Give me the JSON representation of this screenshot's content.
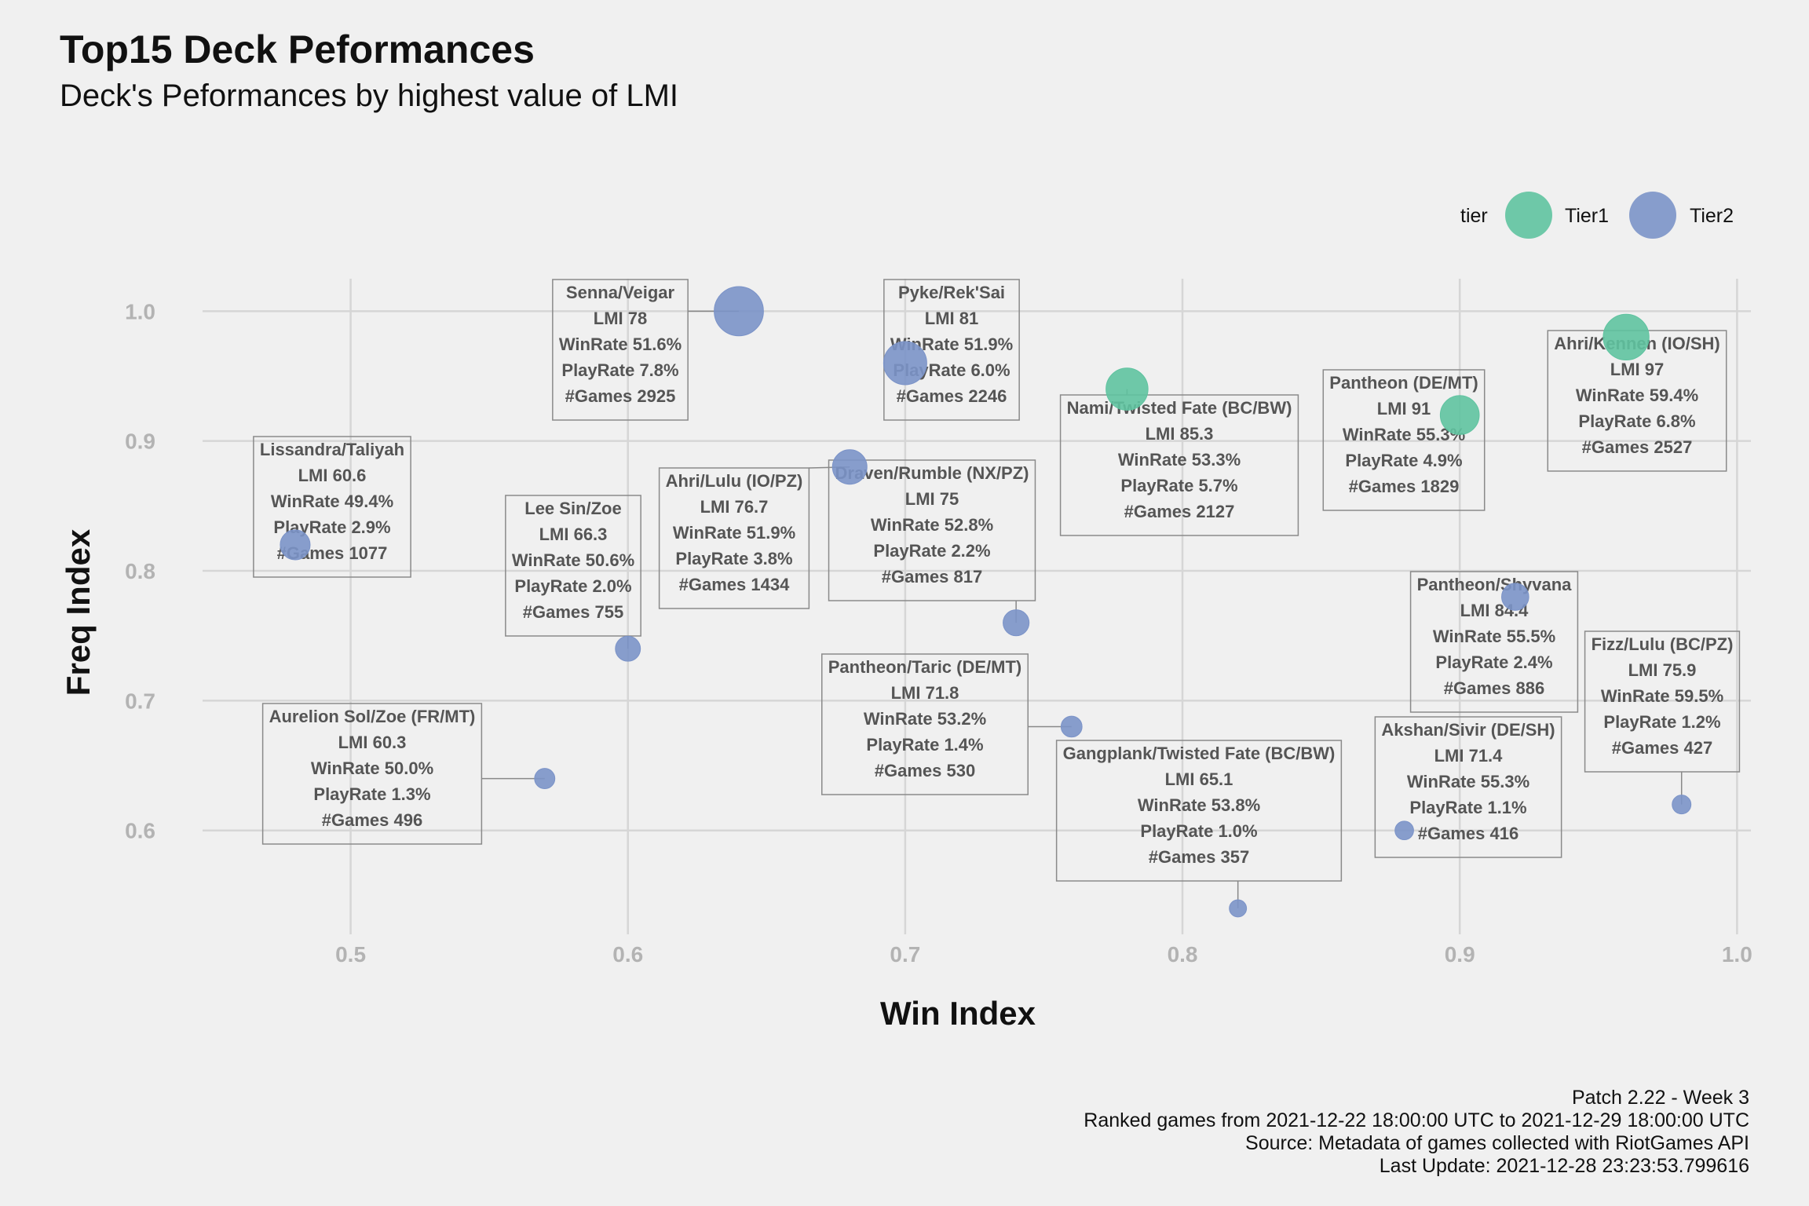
{
  "title": "Top15 Deck Peformances",
  "subtitle": "Deck's Peformances by highest value of LMI",
  "caption": [
    "Patch 2.22 - Week 3",
    "Ranked games from 2021-12-22 18:00:00 UTC to 2021-12-29 18:00:00 UTC",
    "Source: Metadata of games collected with RiotGames API",
    "Last Update: 2021-12-28 23:23:53.799616"
  ],
  "colors": {
    "Tier1": "#5fc3a0",
    "Tier2": "#7b93c8",
    "background": "#f0f0f0",
    "grid": "#d6d6d6"
  },
  "chart_data": {
    "type": "scatter",
    "xlabel": "Win Index",
    "ylabel": "Freq Index",
    "xlim": [
      0.45,
      1.005
    ],
    "ylim": [
      0.52,
      1.025
    ],
    "x_ticks": [
      "0.5",
      "0.6",
      "0.7",
      "0.8",
      "0.9",
      "1.0"
    ],
    "y_ticks": [
      "0.6",
      "0.7",
      "0.8",
      "0.9",
      "1.0"
    ],
    "grid": true,
    "size_variable": "#Games",
    "legend": {
      "title": "tier",
      "position": "top-right",
      "entries": [
        "Tier1",
        "Tier2"
      ]
    },
    "points": [
      {
        "deck": "Senna/Veigar",
        "tier": "Tier2",
        "x": 0.64,
        "y": 1.0,
        "lines": [
          "Senna/Veigar",
          "LMI 78",
          "WinRate 51.6%",
          "PlayRate 7.8%",
          "#Games 2925"
        ]
      },
      {
        "deck": "Pyke/Rek'Sai",
        "tier": "Tier2",
        "x": 0.7,
        "y": 0.96,
        "lines": [
          "Pyke/Rek'Sai",
          "LMI 81",
          "WinRate 51.9%",
          "PlayRate 6.0%",
          "#Games 2246"
        ]
      },
      {
        "deck": "Nami/Twisted Fate (BC/BW)",
        "tier": "Tier1",
        "x": 0.78,
        "y": 0.94,
        "lines": [
          "Nami/Twisted Fate (BC/BW)",
          "LMI 85.3",
          "WinRate 53.3%",
          "PlayRate 5.7%",
          "#Games 2127"
        ]
      },
      {
        "deck": "Pantheon (DE/MT)",
        "tier": "Tier1",
        "x": 0.9,
        "y": 0.92,
        "lines": [
          "Pantheon (DE/MT)",
          "LMI 91",
          "WinRate 55.3%",
          "PlayRate 4.9%",
          "#Games 1829"
        ]
      },
      {
        "deck": "Ahri/Kennen (IO/SH)",
        "tier": "Tier1",
        "x": 0.96,
        "y": 0.98,
        "lines": [
          "Ahri/Kennen (IO/SH)",
          "LMI 97",
          "WinRate 59.4%",
          "PlayRate 6.8%",
          "#Games 2527"
        ]
      },
      {
        "deck": "Lissandra/Taliyah",
        "tier": "Tier2",
        "x": 0.48,
        "y": 0.82,
        "lines": [
          "Lissandra/Taliyah",
          "LMI 60.6",
          "WinRate 49.4%",
          "PlayRate 2.9%",
          "#Games 1077"
        ]
      },
      {
        "deck": "Lee Sin/Zoe",
        "tier": "Tier2",
        "x": 0.6,
        "y": 0.74,
        "lines": [
          "Lee Sin/Zoe",
          "LMI 66.3",
          "WinRate 50.6%",
          "PlayRate 2.0%",
          "#Games 755"
        ]
      },
      {
        "deck": "Ahri/Lulu (IO/PZ)",
        "tier": "Tier2",
        "x": 0.68,
        "y": 0.88,
        "lines": [
          "Ahri/Lulu (IO/PZ)",
          "LMI 76.7",
          "WinRate 51.9%",
          "PlayRate 3.8%",
          "#Games 1434"
        ]
      },
      {
        "deck": "Draven/Rumble (NX/PZ)",
        "tier": "Tier2",
        "x": 0.74,
        "y": 0.76,
        "lines": [
          "Draven/Rumble (NX/PZ)",
          "LMI 75",
          "WinRate 52.8%",
          "PlayRate 2.2%",
          "#Games 817"
        ]
      },
      {
        "deck": "Pantheon/Shyvana",
        "tier": "Tier2",
        "x": 0.92,
        "y": 0.78,
        "lines": [
          "Pantheon/Shyvana",
          "LMI 84.4",
          "WinRate 55.5%",
          "PlayRate 2.4%",
          "#Games 886"
        ]
      },
      {
        "deck": "Fizz/Lulu (BC/PZ)",
        "tier": "Tier2",
        "x": 0.98,
        "y": 0.62,
        "lines": [
          "Fizz/Lulu (BC/PZ)",
          "LMI 75.9",
          "WinRate 59.5%",
          "PlayRate 1.2%",
          "#Games 427"
        ]
      },
      {
        "deck": "Aurelion Sol/Zoe (FR/MT)",
        "tier": "Tier2",
        "x": 0.57,
        "y": 0.64,
        "lines": [
          "Aurelion Sol/Zoe (FR/MT)",
          "LMI 60.3",
          "WinRate 50.0%",
          "PlayRate 1.3%",
          "#Games 496"
        ]
      },
      {
        "deck": "Pantheon/Taric (DE/MT)",
        "tier": "Tier2",
        "x": 0.76,
        "y": 0.68,
        "lines": [
          "Pantheon/Taric (DE/MT)",
          "LMI 71.8",
          "WinRate 53.2%",
          "PlayRate 1.4%",
          "#Games 530"
        ]
      },
      {
        "deck": "Gangplank/Twisted Fate (BC/BW)",
        "tier": "Tier2",
        "x": 0.82,
        "y": 0.54,
        "lines": [
          "Gangplank/Twisted Fate (BC/BW)",
          "LMI 65.1",
          "WinRate 53.8%",
          "PlayRate 1.0%",
          "#Games 357"
        ]
      },
      {
        "deck": "Akshan/Sivir (DE/SH)",
        "tier": "Tier2",
        "x": 0.88,
        "y": 0.6,
        "lines": [
          "Akshan/Sivir (DE/SH)",
          "LMI 71.4",
          "WinRate 55.3%",
          "PlayRate 1.1%",
          "#Games 416"
        ]
      }
    ]
  }
}
